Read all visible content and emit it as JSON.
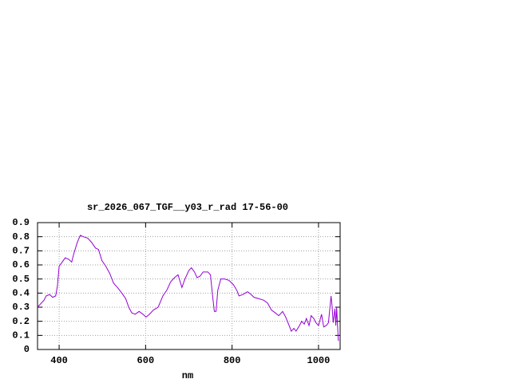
{
  "chart_data": {
    "type": "line",
    "title": "sr_2026_067_TGF__y03_r_rad 17-56-00",
    "x_label": "nm",
    "x": [
      350,
      365,
      370,
      378,
      385,
      392,
      396,
      400,
      407,
      414,
      422,
      429,
      434,
      442,
      449,
      456,
      466,
      475,
      484,
      491,
      499,
      508,
      517,
      526,
      535,
      545,
      554,
      561,
      568,
      576,
      585,
      594,
      601,
      609,
      618,
      629,
      640,
      649,
      658,
      667,
      675,
      684,
      691,
      700,
      706,
      713,
      719,
      726,
      733,
      744,
      750,
      755,
      759,
      763,
      767,
      774,
      783,
      793,
      803,
      811,
      816,
      825,
      836,
      844,
      851,
      862,
      873,
      882,
      891,
      900,
      908,
      917,
      924,
      932,
      937,
      943,
      948,
      956,
      961,
      967,
      972,
      978,
      983,
      989,
      994,
      1000,
      1007,
      1012,
      1018,
      1023,
      1029,
      1031,
      1034,
      1038,
      1040,
      1042,
      1044,
      1046
    ],
    "series": [
      {
        "color": "#9400d3",
        "values": [
          0.3,
          0.35,
          0.38,
          0.39,
          0.37,
          0.38,
          0.45,
          0.59,
          0.62,
          0.65,
          0.64,
          0.62,
          0.68,
          0.76,
          0.81,
          0.8,
          0.79,
          0.76,
          0.72,
          0.71,
          0.63,
          0.59,
          0.54,
          0.47,
          0.44,
          0.4,
          0.36,
          0.3,
          0.26,
          0.25,
          0.27,
          0.25,
          0.23,
          0.25,
          0.28,
          0.3,
          0.38,
          0.42,
          0.48,
          0.51,
          0.53,
          0.44,
          0.5,
          0.56,
          0.58,
          0.55,
          0.51,
          0.52,
          0.55,
          0.55,
          0.53,
          0.38,
          0.27,
          0.27,
          0.42,
          0.5,
          0.5,
          0.49,
          0.46,
          0.42,
          0.38,
          0.39,
          0.41,
          0.39,
          0.37,
          0.36,
          0.35,
          0.33,
          0.28,
          0.26,
          0.24,
          0.27,
          0.23,
          0.17,
          0.13,
          0.15,
          0.13,
          0.17,
          0.2,
          0.18,
          0.22,
          0.17,
          0.24,
          0.22,
          0.19,
          0.17,
          0.25,
          0.16,
          0.17,
          0.19,
          0.38,
          0.32,
          0.19,
          0.29,
          0.17,
          0.3,
          0.17,
          0.06
        ]
      }
    ],
    "xlim": [
      350,
      1050
    ],
    "ylim": [
      0,
      0.9
    ],
    "xticks": [
      400,
      600,
      800,
      1000
    ],
    "yticks": [
      0,
      0.1,
      0.2,
      0.3,
      0.4,
      0.5,
      0.6,
      0.7,
      0.8,
      0.9
    ],
    "grid": true
  }
}
